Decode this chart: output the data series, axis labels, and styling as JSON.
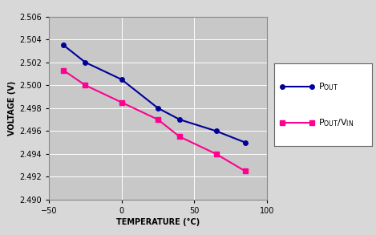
{
  "pout_x": [
    -40,
    -25,
    0,
    25,
    40,
    65,
    85
  ],
  "pout_y": [
    2.5035,
    2.502,
    2.5005,
    2.498,
    2.497,
    2.496,
    2.495
  ],
  "pout_vin_x": [
    -40,
    -25,
    0,
    25,
    40,
    65,
    85
  ],
  "pout_vin_y": [
    2.5013,
    2.5,
    2.4985,
    2.497,
    2.4955,
    2.494,
    2.4925
  ],
  "pout_color": "#000099",
  "pout_vin_color": "#FF0090",
  "xlim": [
    -50,
    100
  ],
  "ylim": [
    2.49,
    2.506
  ],
  "xticks": [
    -50,
    0,
    50,
    100
  ],
  "yticks": [
    2.49,
    2.492,
    2.494,
    2.496,
    2.498,
    2.5,
    2.502,
    2.504,
    2.506
  ],
  "xlabel": "TEMPERATURE (°C)",
  "ylabel": "VOLTAGE (V)",
  "plot_bg_color": "#c8c8c8",
  "fig_bg": "#d8d8d8"
}
